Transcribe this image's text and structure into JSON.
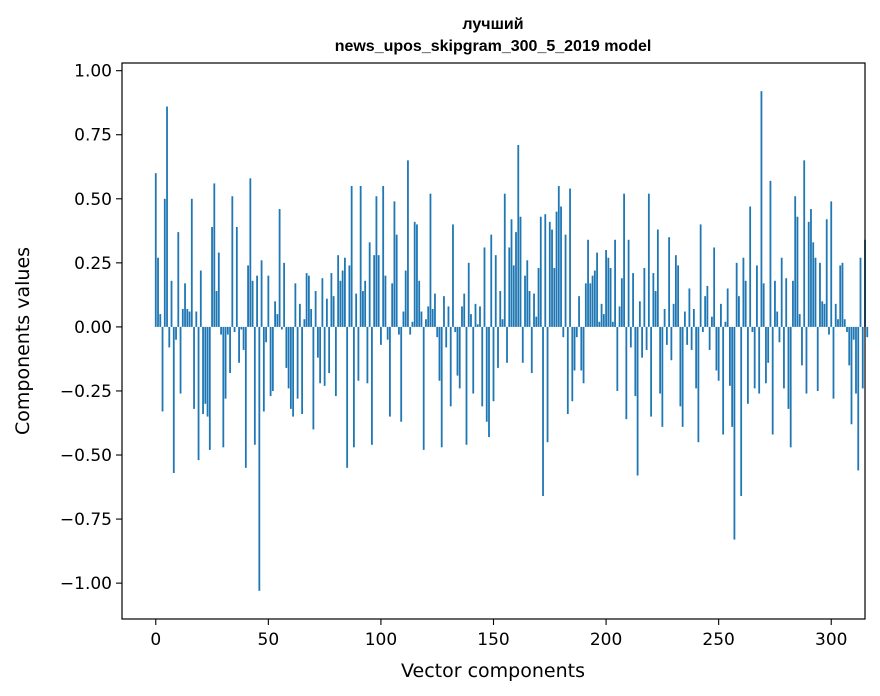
{
  "chart_data": {
    "type": "bar",
    "title": "лучший",
    "subtitle": "news_upos_skipgram_300_5_2019 model",
    "xlabel": "Vector components",
    "ylabel": "Components values",
    "xlim": [
      -15,
      315
    ],
    "ylim": [
      -1.14,
      1.03
    ],
    "xticks": [
      0,
      50,
      100,
      150,
      200,
      250,
      300
    ],
    "xtick_labels": [
      "0",
      "50",
      "100",
      "150",
      "200",
      "250",
      "300"
    ],
    "yticks": [
      -1.0,
      -0.75,
      -0.5,
      -0.25,
      0.0,
      0.25,
      0.5,
      0.75,
      1.0
    ],
    "ytick_labels": [
      "−1.00",
      "−0.75",
      "−0.50",
      "−0.25",
      "0.00",
      "0.25",
      "0.50",
      "0.75",
      "1.00"
    ],
    "grid": false,
    "bar_color": "#1f77b4",
    "values": [
      0.6,
      0.27,
      0.05,
      -0.33,
      0.5,
      0.86,
      -0.08,
      0.18,
      -0.57,
      -0.05,
      0.37,
      -0.26,
      0.07,
      0.17,
      0.07,
      0.06,
      0.5,
      -0.32,
      0.06,
      -0.52,
      0.22,
      -0.34,
      -0.3,
      -0.35,
      -0.48,
      0.39,
      0.56,
      0.14,
      0.29,
      -0.03,
      -0.47,
      -0.28,
      -0.03,
      -0.18,
      0.51,
      -0.02,
      0.39,
      -0.14,
      -0.01,
      -0.09,
      -0.55,
      0.24,
      0.58,
      0.18,
      -0.46,
      0.2,
      -1.03,
      0.26,
      -0.33,
      -0.06,
      0.2,
      -0.27,
      -0.25,
      0.1,
      0.05,
      0.46,
      -0.01,
      0.25,
      -0.16,
      -0.24,
      -0.32,
      -0.35,
      0.17,
      -0.28,
      0.09,
      -0.34,
      0.03,
      0.21,
      0.2,
      0.07,
      -0.4,
      0.14,
      -0.12,
      -0.22,
      0.19,
      -0.23,
      0.11,
      -0.18,
      0.21,
      0.12,
      -0.27,
      0.28,
      0.18,
      0.22,
      0.27,
      -0.55,
      0.24,
      0.55,
      -0.47,
      0.13,
      -0.21,
      0.55,
      0.14,
      0.18,
      -0.22,
      0.33,
      -0.46,
      0.28,
      0.51,
      0.28,
      -0.07,
      0.55,
      0.2,
      -0.05,
      -0.35,
      0.17,
      0.49,
      0.36,
      -0.03,
      -0.37,
      0.06,
      0.22,
      0.65,
      -0.03,
      0.02,
      0.41,
      0.4,
      0.18,
      0.06,
      -0.48,
      0.03,
      0.08,
      0.52,
      0.07,
      0.13,
      -0.04,
      -0.21,
      -0.47,
      0.12,
      -0.08,
      0.08,
      -0.31,
      0.4,
      -0.02,
      -0.19,
      -0.24,
      0.08,
      0.13,
      -0.46,
      0.25,
      0.05,
      -0.26,
      0.09,
      0.01,
      0.08,
      -0.31,
      0.31,
      -0.37,
      -0.43,
      0.36,
      -0.29,
      0.28,
      -0.16,
      0.14,
      0.03,
      0.52,
      -0.14,
      0.31,
      0.42,
      0.24,
      0.37,
      0.71,
      0.43,
      -0.14,
      0.2,
      0.26,
      0.14,
      -0.18,
      0.13,
      0.04,
      0.23,
      0.43,
      -0.66,
      0.44,
      -0.45,
      0.41,
      0.38,
      0.23,
      0.45,
      0.55,
      0.47,
      -0.04,
      0.36,
      -0.34,
      0.54,
      -0.29,
      -0.17,
      -0.04,
      0.12,
      -0.17,
      -0.22,
      0.17,
      0.34,
      0.17,
      0.2,
      0.22,
      0.29,
      0.02,
      0.09,
      0.05,
      0.3,
      0.27,
      0.23,
      0.02,
      0.34,
      -0.25,
      0.08,
      0.19,
      0.52,
      -0.36,
      0.34,
      -0.08,
      0.21,
      -0.27,
      -0.58,
      0.1,
      -0.12,
      0.23,
      -0.09,
      0.52,
      -0.35,
      0.21,
      0.14,
      0.38,
      -0.26,
      -0.39,
      0.07,
      -0.07,
      0.35,
      -0.13,
      0.09,
      0.28,
      0.24,
      -0.31,
      -0.39,
      0.06,
      -0.07,
      0.15,
      -0.09,
      0.07,
      -0.24,
      -0.45,
      0.4,
      -0.02,
      0.12,
      0.16,
      -0.09,
      0.04,
      0.31,
      -0.17,
      -0.21,
      0.09,
      -0.42,
      0.02,
      0.15,
      -0.23,
      -0.39,
      -0.83,
      0.25,
      0.12,
      -0.66,
      0.27,
      0.18,
      -0.3,
      0.47,
      -0.02,
      -0.24,
      0.24,
      -0.26,
      0.92,
      0.17,
      -0.22,
      -0.14,
      0.57,
      -0.42,
      0.18,
      0.06,
      -0.06,
      0.27,
      -0.24,
      0.19,
      -0.32,
      -0.47,
      0.18,
      0.51,
      0.43,
      0.05,
      -0.15,
      0.65,
      -0.26,
      0.41,
      0.46,
      0.33,
      0.27,
      -0.25,
      0.25,
      0.1,
      0.09,
      0.42,
      -0.03,
      0.49,
      -0.28,
      0.09,
      0.03,
      0.24,
      0.25,
      0.03,
      -0.02,
      -0.15,
      -0.38,
      -0.05,
      -0.26,
      -0.56,
      0.27,
      -0.24,
      0.34,
      -0.04
    ]
  }
}
